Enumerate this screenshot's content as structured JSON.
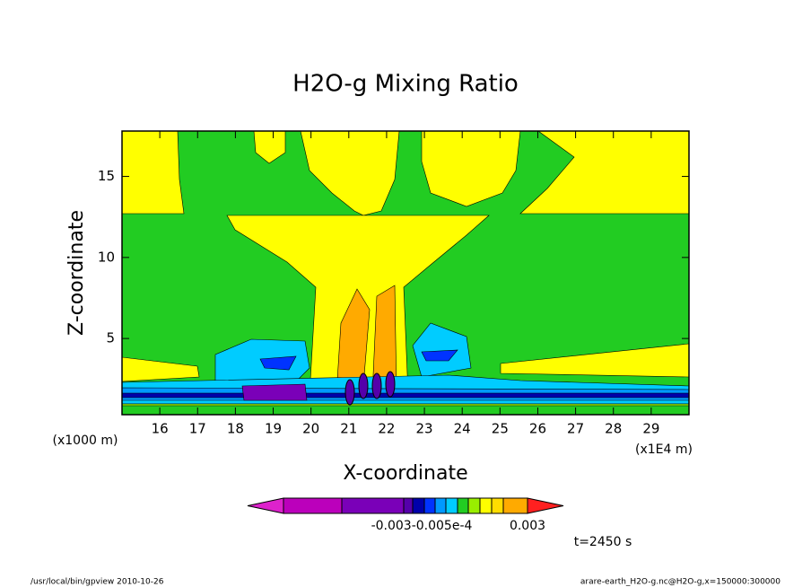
{
  "chart_data": {
    "type": "contour",
    "title": "H2O-g Mixing Ratio",
    "x_label": "X-coordinate",
    "y_label": "Z-coordinate",
    "x_unit_left": "(x1000 m)",
    "x_unit_right": "(x1E4 m)",
    "annotation": "t=2450 s",
    "xlim": [
      15,
      30
    ],
    "xticks": [
      16,
      17,
      18,
      19,
      20,
      21,
      22,
      23,
      24,
      25,
      26,
      27,
      28,
      29
    ],
    "ylim": [
      0.3,
      17.8
    ],
    "yticks": [
      5,
      10,
      15
    ],
    "colorbar": {
      "colors": [
        "#dd22cc",
        "#bb00bb",
        "#7a00b8",
        "#5500aa",
        "#0000aa",
        "#0033ff",
        "#0099ff",
        "#00ccff",
        "#22cc22",
        "#99ee00",
        "#ffff00",
        "#ffdd00",
        "#ffaa00",
        "#ff2020"
      ],
      "labels": [
        "-0.003-0.005e-4",
        "0.003"
      ]
    }
  },
  "footer": {
    "left": "/usr/local/bin/gpview  2010-10-26",
    "right": "arare-earth_H2O-g.nc@H2O-g,x=150000:300000"
  }
}
